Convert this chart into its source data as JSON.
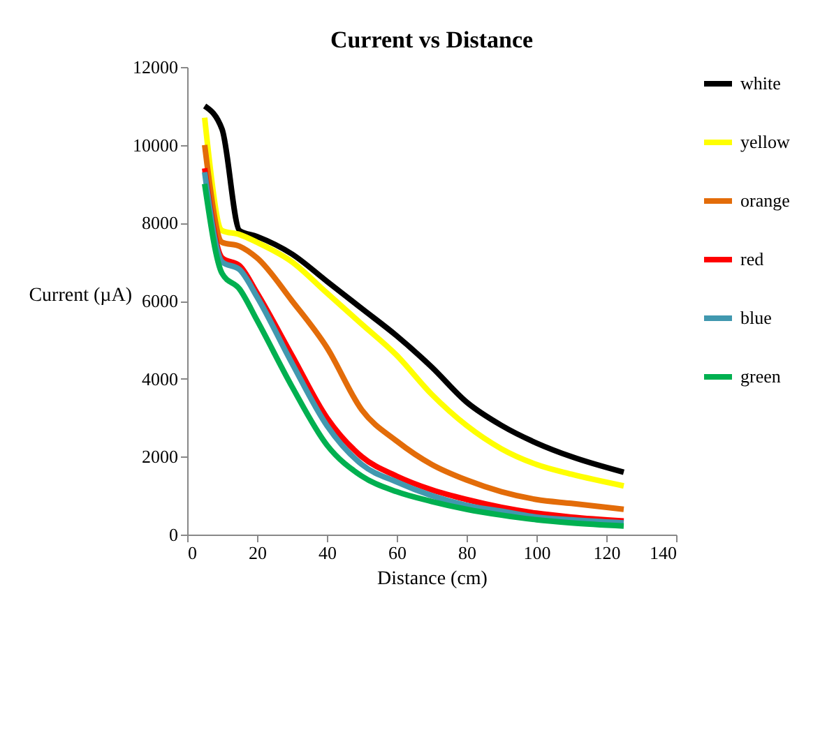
{
  "chart_data": {
    "type": "line",
    "title": "Current vs Distance",
    "xlabel": "Distance (cm)",
    "ylabel": "Current (µA)",
    "x": [
      5,
      10,
      15,
      20,
      30,
      40,
      50,
      60,
      70,
      80,
      90,
      100,
      110,
      125
    ],
    "series": [
      {
        "name": "white",
        "color": "#000000",
        "values": [
          11000,
          10400,
          7800,
          7650,
          7200,
          6500,
          5800,
          5100,
          4300,
          3400,
          2800,
          2350,
          2000,
          1600
        ]
      },
      {
        "name": "yellow",
        "color": "#ffff00",
        "values": [
          10700,
          7800,
          7700,
          7500,
          7000,
          6200,
          5400,
          4600,
          3600,
          2800,
          2200,
          1800,
          1550,
          1250
        ]
      },
      {
        "name": "orange",
        "color": "#e36c09",
        "values": [
          10000,
          7500,
          7400,
          7100,
          6000,
          4800,
          3200,
          2400,
          1800,
          1400,
          1100,
          900,
          800,
          650
        ]
      },
      {
        "name": "red",
        "color": "#ff0000",
        "values": [
          9400,
          7100,
          6900,
          6200,
          4600,
          3000,
          2000,
          1500,
          1150,
          900,
          700,
          550,
          450,
          350
        ]
      },
      {
        "name": "blue",
        "color": "#4198af",
        "values": [
          9300,
          7000,
          6800,
          6100,
          4400,
          2800,
          1800,
          1350,
          1000,
          750,
          600,
          450,
          380,
          300
        ]
      },
      {
        "name": "green",
        "color": "#00b050",
        "values": [
          9000,
          6700,
          6300,
          5500,
          3800,
          2300,
          1500,
          1100,
          850,
          650,
          500,
          380,
          300,
          220
        ]
      }
    ],
    "xlim": [
      0,
      140
    ],
    "xticks": [
      0,
      20,
      40,
      60,
      80,
      100,
      120,
      140
    ],
    "ylim": [
      0,
      12000
    ],
    "yticks": [
      0,
      2000,
      4000,
      6000,
      8000,
      10000,
      12000
    ],
    "grid": false,
    "legend": "right",
    "marker": "none",
    "line_style": "solid"
  }
}
